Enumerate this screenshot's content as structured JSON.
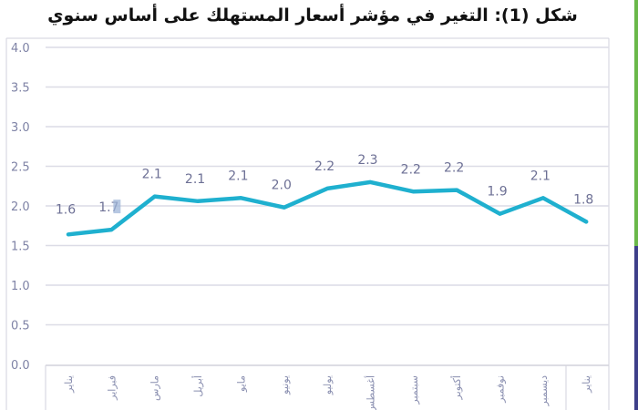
{
  "title": "شكل (1): التغير في مؤشر أسعار المستهلك على أساس سنوي",
  "colors": {
    "line": "#1fb0cf",
    "grid": "#dcdce6",
    "frame": "#d2d2dc",
    "axis_text": "#7f83a6",
    "side_green": "#6ab84a",
    "side_navy": "#3e3f8a"
  },
  "chart_data": {
    "type": "line",
    "title": "شكل (1): التغير في مؤشر أسعار المستهلك على أساس سنوي",
    "xlabel": "",
    "ylabel": "",
    "ylim": [
      0,
      4.0
    ],
    "yticks": [
      "0.0",
      "0.5",
      "1.0",
      "1.5",
      "2.0",
      "2.5",
      "3.0",
      "3.5",
      "4.0"
    ],
    "grid": true,
    "legend": "none",
    "categories": [
      "يناير",
      "فبراير",
      "مارس",
      "أبريل",
      "مايو",
      "يونيو",
      "يوليو",
      "أغسطس",
      "سبتمبر",
      "أكتوبر",
      "نوفمبر",
      "ديسمبر",
      "يناير"
    ],
    "series": [
      {
        "name": "التغير في مؤشر أسعار المستهلك",
        "values": [
          1.6,
          1.7,
          2.1,
          2.1,
          2.1,
          2.0,
          2.2,
          2.3,
          2.2,
          2.2,
          1.9,
          2.1,
          1.8
        ],
        "plotted": [
          1.64,
          1.7,
          2.12,
          2.06,
          2.1,
          1.98,
          2.22,
          2.3,
          2.18,
          2.2,
          1.9,
          2.1,
          1.8
        ],
        "data_labels": [
          "1.6",
          "1.7",
          "2.1",
          "2.1",
          "2.1",
          "2.0",
          "2.2",
          "2.3",
          "2.2",
          "2.2",
          "1.9",
          "2.1",
          "1.8"
        ]
      }
    ]
  }
}
